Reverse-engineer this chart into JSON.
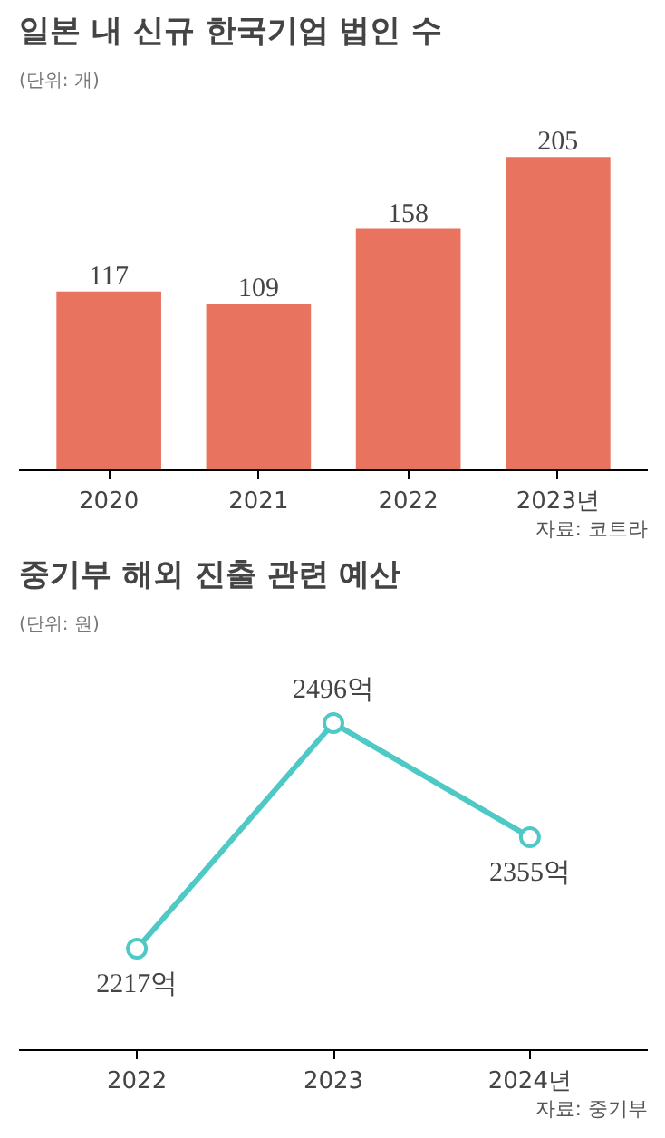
{
  "chart_data": [
    {
      "type": "bar",
      "title": "일본 내 신규 한국기업 법인 수",
      "subtitle": "(단위: 개)",
      "categories": [
        "2020",
        "2021",
        "2022",
        "2023년"
      ],
      "values": [
        117,
        109,
        158,
        205
      ],
      "color": "#e8735f",
      "data_labels": true,
      "grid": false,
      "annotations": [
        "자료: 코트라"
      ]
    },
    {
      "type": "line",
      "title": "중기부 해외 진출 관련 예산",
      "subtitle": "(단위: 원)",
      "categories": [
        "2022",
        "2023",
        "2024년"
      ],
      "values": [
        2217,
        2496,
        2355
      ],
      "value_labels": [
        "2217억",
        "2496억",
        "2355억"
      ],
      "color": "#4ec9c6",
      "marker": "circle",
      "line_style": "solid",
      "grid": false,
      "annotations": [
        "자료: 중기부"
      ]
    }
  ]
}
